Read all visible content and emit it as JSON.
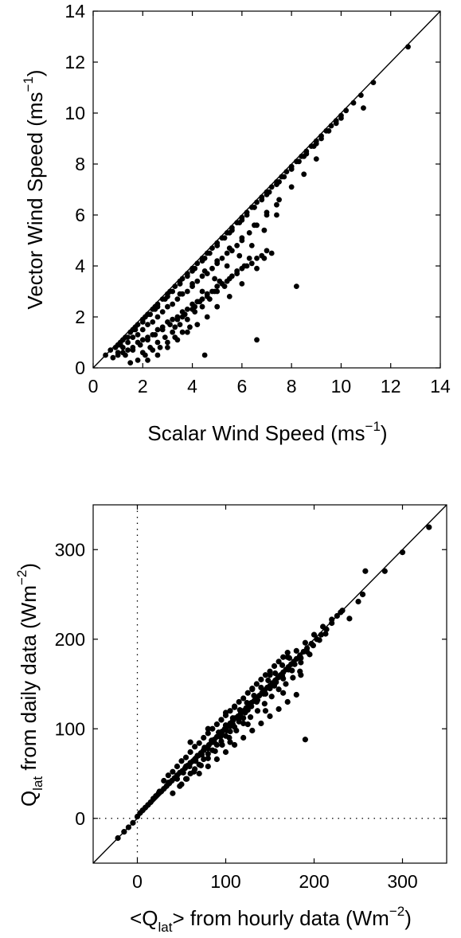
{
  "chart_data": [
    {
      "type": "scatter",
      "xlabel": {
        "prefix": "Scalar Wind Speed (ms",
        "sup": "−1",
        "suffix": ")"
      },
      "ylabel": {
        "prefix": "Vector Wind Speed (ms",
        "sup": "−1",
        "suffix": ")"
      },
      "xlim": [
        0,
        14
      ],
      "ylim": [
        0,
        14
      ],
      "xticks": [
        "0",
        "2",
        "4",
        "6",
        "8",
        "10",
        "12",
        "14"
      ],
      "yticks": [
        "0",
        "2",
        "4",
        "6",
        "8",
        "10",
        "12",
        "14"
      ],
      "xtick_values": [
        0,
        2,
        4,
        6,
        8,
        10,
        12,
        14
      ],
      "ytick_values": [
        0,
        2,
        4,
        6,
        8,
        10,
        12,
        14
      ],
      "grid": false,
      "one_to_one_line": true,
      "marker_color": "#000000",
      "points_x": [
        0.5,
        0.7,
        0.9,
        1.0,
        1.1,
        1.2,
        1.3,
        1.5,
        1.6,
        1.7,
        1.8,
        2.0,
        2.1,
        2.2,
        2.4,
        2.5,
        2.6,
        2.8,
        3.0,
        3.1,
        3.3,
        3.5,
        3.6,
        3.8,
        4.0,
        4.2,
        4.4,
        4.6,
        4.8,
        5.0,
        5.2,
        5.4,
        5.6,
        5.8,
        6.0,
        6.2,
        6.4,
        6.6,
        6.8,
        7.0,
        7.2,
        7.4,
        7.6,
        7.8,
        8.0,
        8.2,
        8.4,
        8.6,
        8.8,
        9.0,
        9.2,
        9.4,
        9.6,
        9.8,
        10.0,
        10.2,
        10.5,
        10.8,
        11.3,
        12.7,
        1.0,
        1.2,
        1.4,
        1.6,
        1.8,
        2.0,
        2.2,
        2.4,
        2.6,
        2.8,
        3.0,
        3.2,
        3.4,
        3.6,
        3.8,
        4.0,
        4.2,
        4.4,
        4.6,
        4.8,
        5.0,
        5.2,
        5.4,
        5.6,
        5.8,
        6.0,
        6.3,
        6.6,
        7.0,
        7.4,
        1.3,
        1.6,
        1.9,
        2.2,
        2.5,
        2.8,
        3.1,
        3.4,
        3.7,
        4.0,
        4.3,
        4.6,
        4.9,
        5.2,
        5.5,
        5.8,
        6.1,
        2.0,
        2.3,
        2.6,
        2.9,
        3.2,
        3.5,
        3.8,
        4.1,
        4.4,
        4.7,
        5.0,
        5.3,
        2.2,
        2.6,
        3.0,
        3.4,
        3.8,
        4.2,
        4.6,
        5.0,
        5.5,
        6.0,
        6.6,
        7.2,
        1.5,
        1.8,
        2.1,
        2.4,
        2.7,
        3.0,
        3.3,
        3.6,
        3.9,
        2.5,
        3.0,
        3.5,
        4.0,
        4.5,
        5.0,
        5.5,
        6.0,
        6.5,
        7.0,
        7.5,
        8.0,
        8.5,
        9.0,
        9.5,
        10.0,
        10.9,
        1.1,
        1.4,
        1.7,
        2.0,
        2.3,
        2.6,
        2.9,
        3.2,
        3.5,
        3.8,
        4.1,
        4.4,
        4.7,
        5.0,
        5.3,
        5.6,
        5.9,
        6.2,
        6.5,
        6.8,
        7.1,
        7.4,
        7.7,
        8.0,
        8.3,
        8.6,
        8.9,
        9.2,
        9.5,
        9.8,
        3.5,
        4.0,
        4.5,
        5.0,
        5.5,
        6.0,
        6.5,
        7.0,
        7.5,
        8.0,
        8.5,
        9.0,
        4.4,
        4.9,
        5.4,
        5.9,
        6.4,
        6.9,
        7.4,
        3.6,
        4.1,
        4.6,
        5.1,
        6.3,
        6.9,
        8.2,
        6.6,
        4.5,
        3.3,
        0.8,
        1.0,
        1.2,
        1.4,
        1.6,
        1.8,
        2.0,
        2.2,
        2.4,
        2.6,
        2.8,
        3.0,
        3.2,
        3.4,
        3.6,
        3.8,
        4.0,
        4.2,
        4.4,
        4.6,
        4.8,
        5.0,
        5.2,
        5.4,
        5.6,
        5.8,
        6.0,
        6.2,
        6.4,
        6.6,
        6.8,
        7.0
      ],
      "points_y": [
        0.5,
        0.7,
        0.8,
        0.9,
        1.0,
        1.1,
        1.2,
        1.4,
        1.5,
        1.6,
        1.7,
        1.9,
        2.0,
        2.1,
        2.3,
        2.4,
        2.5,
        2.7,
        2.9,
        3.0,
        3.2,
        3.4,
        3.5,
        3.7,
        3.9,
        4.1,
        4.3,
        4.5,
        4.7,
        4.9,
        5.1,
        5.3,
        5.5,
        5.7,
        5.9,
        6.1,
        6.3,
        6.5,
        6.7,
        6.9,
        7.1,
        7.3,
        7.5,
        7.7,
        7.9,
        8.1,
        8.3,
        8.5,
        8.7,
        8.9,
        9.1,
        9.3,
        9.5,
        9.7,
        9.9,
        10.1,
        10.4,
        10.7,
        11.2,
        12.6,
        0.6,
        0.8,
        1.0,
        1.2,
        1.3,
        1.5,
        1.7,
        1.8,
        2.0,
        2.2,
        2.4,
        2.5,
        2.7,
        2.9,
        3.0,
        3.2,
        3.4,
        3.6,
        3.7,
        3.9,
        4.1,
        4.3,
        4.5,
        4.6,
        4.8,
        5.0,
        5.3,
        5.6,
        6.0,
        6.4,
        0.5,
        0.7,
        0.9,
        1.1,
        1.3,
        1.5,
        1.7,
        1.9,
        2.1,
        2.3,
        2.6,
        2.8,
        3.0,
        3.3,
        3.5,
        3.8,
        4.0,
        0.6,
        0.8,
        1.0,
        1.2,
        1.4,
        1.7,
        1.9,
        2.2,
        2.4,
        2.7,
        3.0,
        3.2,
        0.3,
        0.5,
        0.8,
        1.1,
        1.4,
        1.7,
        2.0,
        2.4,
        2.8,
        3.3,
        3.9,
        4.5,
        0.2,
        0.3,
        0.5,
        0.7,
        0.8,
        1.0,
        1.2,
        1.4,
        1.6,
        2.3,
        2.8,
        3.3,
        3.8,
        4.3,
        4.8,
        5.3,
        5.8,
        6.3,
        6.8,
        7.3,
        7.8,
        8.3,
        8.8,
        9.3,
        9.8,
        10.2,
        0.9,
        1.2,
        1.5,
        1.8,
        2.1,
        2.4,
        2.7,
        3.0,
        3.3,
        3.6,
        3.9,
        4.2,
        4.5,
        4.8,
        5.1,
        5.4,
        5.7,
        6.0,
        6.3,
        6.6,
        6.9,
        7.2,
        7.5,
        7.8,
        8.1,
        8.4,
        8.7,
        9.0,
        9.3,
        9.6,
        2.9,
        3.3,
        3.8,
        4.2,
        4.7,
        5.1,
        5.6,
        6.1,
        6.6,
        7.1,
        7.6,
        8.2,
        3.0,
        3.5,
        4.0,
        4.4,
        4.8,
        5.4,
        6.0,
        2.0,
        2.4,
        2.9,
        3.4,
        4.3,
        4.3,
        3.2,
        1.1,
        0.5,
        1.6,
        0.4,
        0.5,
        0.6,
        0.7,
        0.8,
        1.0,
        1.1,
        1.2,
        1.3,
        1.5,
        1.6,
        1.8,
        1.9,
        2.0,
        2.2,
        2.3,
        2.5,
        2.6,
        2.7,
        2.9,
        3.0,
        3.2,
        3.3,
        3.4,
        3.6,
        3.7,
        3.9,
        4.0,
        4.1,
        4.3,
        4.4,
        4.6
      ]
    },
    {
      "type": "scatter",
      "xlabel": {
        "prefix": "<Q",
        "sub": "lat",
        "middle": "> from hourly data (Wm",
        "sup": "−2",
        "suffix": ")"
      },
      "ylabel": {
        "prefix": "Q",
        "sub": "lat",
        "middle": " from daily data (Wm",
        "sup": "−2",
        "suffix": ")"
      },
      "xlim": [
        -50,
        350
      ],
      "ylim": [
        -50,
        350
      ],
      "xticks": [
        "0",
        "100",
        "200",
        "300"
      ],
      "yticks": [
        "0",
        "100",
        "200",
        "300"
      ],
      "xtick_values": [
        0,
        100,
        200,
        300
      ],
      "ytick_values": [
        0,
        100,
        200,
        300
      ],
      "grid": false,
      "one_to_one_line": true,
      "zero_reference_lines": "dotted",
      "marker_color": "#000000",
      "points_x": [
        -22,
        -15,
        -10,
        -5,
        0,
        3,
        6,
        9,
        12,
        15,
        18,
        21,
        24,
        27,
        30,
        33,
        36,
        39,
        42,
        45,
        48,
        51,
        54,
        57,
        60,
        63,
        66,
        69,
        72,
        75,
        78,
        81,
        84,
        87,
        90,
        93,
        96,
        99,
        102,
        105,
        108,
        111,
        114,
        117,
        120,
        123,
        126,
        129,
        132,
        135,
        138,
        141,
        144,
        147,
        150,
        153,
        156,
        159,
        162,
        165,
        168,
        171,
        174,
        177,
        180,
        184,
        188,
        192,
        197,
        203,
        208,
        214,
        220,
        226,
        232,
        240,
        250,
        255,
        258,
        280,
        300,
        330,
        30,
        35,
        40,
        45,
        50,
        55,
        60,
        65,
        70,
        75,
        80,
        85,
        90,
        95,
        100,
        105,
        110,
        115,
        120,
        125,
        130,
        135,
        140,
        145,
        150,
        155,
        160,
        165,
        170,
        50,
        55,
        60,
        65,
        70,
        75,
        80,
        85,
        90,
        95,
        100,
        105,
        110,
        115,
        120,
        40,
        48,
        56,
        64,
        72,
        80,
        88,
        96,
        104,
        112,
        120,
        128,
        136,
        144,
        152,
        160,
        168,
        176,
        184,
        70,
        80,
        90,
        100,
        110,
        120,
        130,
        140,
        150,
        160,
        170,
        180,
        25,
        35,
        45,
        55,
        65,
        75,
        85,
        95,
        105,
        115,
        125,
        135,
        145,
        155,
        165,
        175,
        185,
        195,
        60,
        68,
        76,
        84,
        92,
        100,
        108,
        116,
        124,
        132,
        140,
        148,
        156,
        164,
        172,
        180,
        190,
        200,
        210,
        220,
        230,
        45,
        52,
        59,
        66,
        73,
        80,
        87,
        94,
        101,
        108,
        115,
        122,
        129,
        136,
        143,
        150,
        157,
        164,
        171,
        178,
        185,
        192,
        199,
        206,
        213,
        105,
        125,
        145,
        165,
        185,
        95,
        110,
        130,
        150,
        170,
        190,
        60,
        80,
        100
      ],
      "points_y": [
        -22,
        -15,
        -10,
        -5,
        2,
        6,
        9,
        12,
        15,
        18,
        22,
        25,
        28,
        30,
        33,
        36,
        39,
        42,
        45,
        48,
        51,
        53,
        56,
        59,
        62,
        64,
        67,
        70,
        73,
        76,
        79,
        82,
        85,
        88,
        91,
        94,
        97,
        100,
        103,
        106,
        109,
        112,
        114,
        117,
        120,
        123,
        126,
        129,
        131,
        134,
        137,
        140,
        143,
        146,
        148,
        151,
        154,
        157,
        160,
        163,
        166,
        169,
        172,
        175,
        178,
        182,
        186,
        190,
        195,
        200,
        205,
        211,
        218,
        226,
        232,
        223,
        242,
        250,
        276,
        276,
        297,
        325,
        42,
        48,
        52,
        58,
        64,
        68,
        74,
        80,
        84,
        90,
        95,
        100,
        105,
        110,
        115,
        120,
        124,
        130,
        134,
        140,
        144,
        150,
        155,
        160,
        164,
        170,
        175,
        180,
        185,
        38,
        44,
        50,
        55,
        60,
        66,
        72,
        76,
        82,
        86,
        92,
        97,
        102,
        108,
        112,
        28,
        36,
        44,
        52,
        59,
        67,
        75,
        82,
        90,
        98,
        106,
        113,
        120,
        128,
        136,
        144,
        150,
        157,
        164,
        50,
        58,
        66,
        74,
        82,
        90,
        98,
        106,
        114,
        122,
        130,
        138,
        30,
        40,
        48,
        58,
        66,
        76,
        85,
        94,
        103,
        112,
        121,
        130,
        139,
        148,
        156,
        165,
        174,
        183,
        62,
        70,
        79,
        87,
        96,
        104,
        112,
        121,
        129,
        137,
        146,
        154,
        162,
        171,
        179,
        187,
        196,
        205,
        214,
        222,
        230,
        44,
        51,
        58,
        64,
        71,
        78,
        85,
        91,
        98,
        105,
        112,
        118,
        125,
        132,
        139,
        145,
        152,
        159,
        166,
        172,
        179,
        186,
        193,
        199,
        206,
        85,
        105,
        120,
        140,
        160,
        110,
        125,
        145,
        160,
        180,
        88,
        85,
        100,
        118
      ]
    }
  ]
}
